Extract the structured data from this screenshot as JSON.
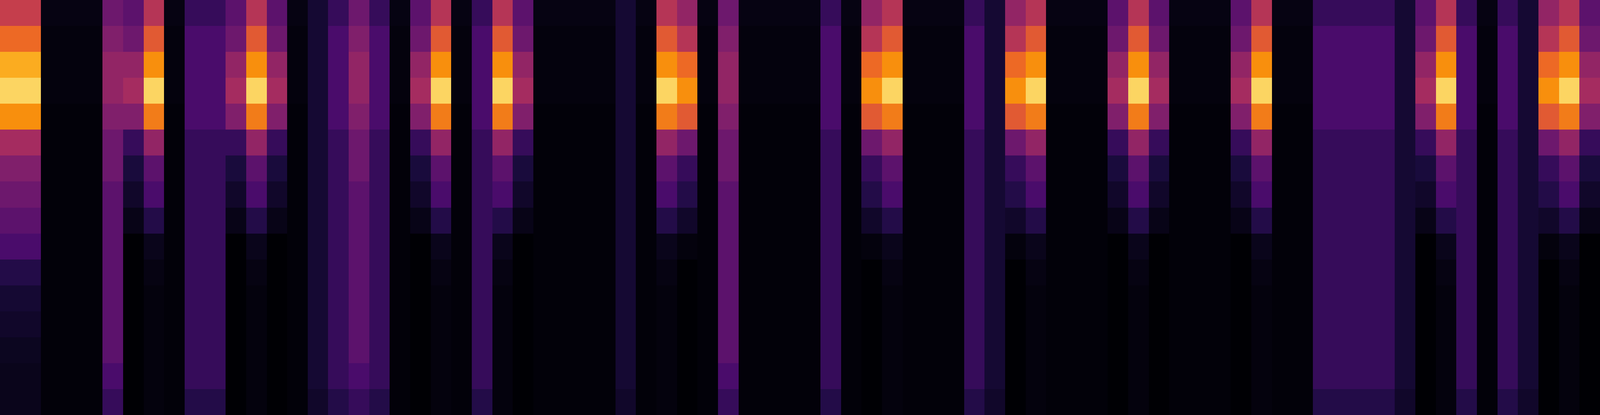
{
  "chart_data": {
    "type": "heatmap",
    "tick_labels": false,
    "zlim": [
      0,
      1
    ],
    "columns": [
      [
        0.6,
        0.75,
        0.9,
        0.95,
        0.85,
        0.5,
        0.4,
        0.35,
        0.3,
        0.25,
        0.15,
        0.1,
        0.08,
        0.06,
        0.05,
        0.05
      ],
      [
        0.6,
        0.75,
        0.9,
        0.95,
        0.85,
        0.5,
        0.4,
        0.35,
        0.3,
        0.25,
        0.15,
        0.1,
        0.08,
        0.06,
        0.05,
        0.05
      ],
      [
        0.03,
        0.02,
        0.02,
        0.02,
        0.01,
        0.01,
        0.01,
        0.01,
        0.01,
        0.01,
        0.01,
        0.01,
        0.01,
        0.01,
        0.01,
        0.01
      ],
      [
        0.03,
        0.02,
        0.02,
        0.02,
        0.01,
        0.01,
        0.01,
        0.01,
        0.01,
        0.01,
        0.01,
        0.01,
        0.01,
        0.01,
        0.01,
        0.01
      ],
      [
        0.03,
        0.02,
        0.02,
        0.02,
        0.01,
        0.01,
        0.01,
        0.01,
        0.01,
        0.01,
        0.01,
        0.01,
        0.01,
        0.01,
        0.01,
        0.01
      ],
      [
        0.35,
        0.4,
        0.45,
        0.45,
        0.4,
        0.35,
        0.35,
        0.3,
        0.3,
        0.3,
        0.3,
        0.3,
        0.3,
        0.3,
        0.25,
        0.2
      ],
      [
        0.3,
        0.35,
        0.45,
        0.5,
        0.4,
        0.2,
        0.12,
        0.08,
        0.04,
        0,
        0,
        0,
        0,
        0,
        0,
        0
      ],
      [
        0.55,
        0.7,
        0.85,
        0.95,
        0.8,
        0.45,
        0.3,
        0.25,
        0.15,
        0.05,
        0.03,
        0.02,
        0.02,
        0.02,
        0.02,
        0.02
      ],
      [
        0.03,
        0.02,
        0.02,
        0.02,
        0.01,
        0.01,
        0.01,
        0.01,
        0.01,
        0.01,
        0.01,
        0.01,
        0.01,
        0.01,
        0.01,
        0.01
      ],
      [
        0.2,
        0.25,
        0.25,
        0.25,
        0.25,
        0.2,
        0.2,
        0.2,
        0.2,
        0.2,
        0.2,
        0.2,
        0.2,
        0.2,
        0.2,
        0.15
      ],
      [
        0.2,
        0.25,
        0.25,
        0.25,
        0.25,
        0.2,
        0.2,
        0.2,
        0.2,
        0.2,
        0.2,
        0.2,
        0.2,
        0.2,
        0.2,
        0.15
      ],
      [
        0.3,
        0.35,
        0.45,
        0.5,
        0.4,
        0.2,
        0.12,
        0.08,
        0.04,
        0,
        0,
        0,
        0,
        0,
        0,
        0
      ],
      [
        0.55,
        0.7,
        0.85,
        0.95,
        0.8,
        0.45,
        0.3,
        0.25,
        0.15,
        0.05,
        0.03,
        0.02,
        0.02,
        0.02,
        0.02,
        0.02
      ],
      [
        0.3,
        0.35,
        0.45,
        0.5,
        0.4,
        0.2,
        0.12,
        0.08,
        0.04,
        0,
        0,
        0,
        0,
        0,
        0,
        0
      ],
      [
        0.03,
        0.02,
        0.02,
        0.02,
        0.01,
        0.01,
        0.01,
        0.01,
        0.01,
        0.01,
        0.01,
        0.01,
        0.01,
        0.01,
        0.01,
        0.01
      ],
      [
        0.1,
        0.1,
        0.1,
        0.1,
        0.1,
        0.1,
        0.1,
        0.1,
        0.1,
        0.1,
        0.1,
        0.1,
        0.1,
        0.1,
        0.1,
        0.08
      ],
      [
        0.2,
        0.25,
        0.25,
        0.25,
        0.25,
        0.2,
        0.2,
        0.2,
        0.2,
        0.2,
        0.2,
        0.2,
        0.2,
        0.2,
        0.2,
        0.15
      ],
      [
        0.35,
        0.4,
        0.45,
        0.45,
        0.4,
        0.35,
        0.35,
        0.3,
        0.3,
        0.3,
        0.3,
        0.3,
        0.3,
        0.3,
        0.25,
        0.2
      ],
      [
        0.2,
        0.25,
        0.25,
        0.25,
        0.25,
        0.2,
        0.2,
        0.2,
        0.2,
        0.2,
        0.2,
        0.2,
        0.2,
        0.2,
        0.2,
        0.15
      ],
      [
        0.03,
        0.02,
        0.02,
        0.02,
        0.01,
        0.01,
        0.01,
        0.01,
        0.01,
        0.01,
        0.01,
        0.01,
        0.01,
        0.01,
        0.01,
        0.01
      ],
      [
        0.3,
        0.35,
        0.45,
        0.5,
        0.4,
        0.2,
        0.12,
        0.08,
        0.04,
        0,
        0,
        0,
        0,
        0,
        0,
        0
      ],
      [
        0.55,
        0.7,
        0.85,
        0.95,
        0.8,
        0.45,
        0.3,
        0.25,
        0.15,
        0.05,
        0.03,
        0.02,
        0.02,
        0.02,
        0.02,
        0.02
      ],
      [
        0.03,
        0.02,
        0.02,
        0.02,
        0.01,
        0.01,
        0.01,
        0.01,
        0.01,
        0.01,
        0.01,
        0.01,
        0.01,
        0.01,
        0.01,
        0.01
      ],
      [
        0.2,
        0.25,
        0.25,
        0.25,
        0.25,
        0.2,
        0.2,
        0.2,
        0.2,
        0.2,
        0.2,
        0.2,
        0.2,
        0.2,
        0.2,
        0.15
      ],
      [
        0.55,
        0.7,
        0.85,
        0.95,
        0.8,
        0.45,
        0.3,
        0.25,
        0.15,
        0.05,
        0.03,
        0.02,
        0.02,
        0.02,
        0.02,
        0.02
      ],
      [
        0.3,
        0.35,
        0.45,
        0.5,
        0.4,
        0.2,
        0.12,
        0.08,
        0.04,
        0,
        0,
        0,
        0,
        0,
        0,
        0
      ],
      [
        0.03,
        0.02,
        0.02,
        0.02,
        0.01,
        0.01,
        0.01,
        0.01,
        0.01,
        0.01,
        0.01,
        0.01,
        0.01,
        0.01,
        0.01,
        0.01
      ],
      [
        0.03,
        0.02,
        0.02,
        0.02,
        0.01,
        0.01,
        0.01,
        0.01,
        0.01,
        0.01,
        0.01,
        0.01,
        0.01,
        0.01,
        0.01,
        0.01
      ],
      [
        0.03,
        0.02,
        0.02,
        0.02,
        0.01,
        0.01,
        0.01,
        0.01,
        0.01,
        0.01,
        0.01,
        0.01,
        0.01,
        0.01,
        0.01,
        0.01
      ],
      [
        0.03,
        0.02,
        0.02,
        0.02,
        0.01,
        0.01,
        0.01,
        0.01,
        0.01,
        0.01,
        0.01,
        0.01,
        0.01,
        0.01,
        0.01,
        0.01
      ],
      [
        0.1,
        0.1,
        0.1,
        0.1,
        0.1,
        0.1,
        0.1,
        0.1,
        0.1,
        0.1,
        0.1,
        0.1,
        0.1,
        0.1,
        0.1,
        0.08
      ],
      [
        0.03,
        0.02,
        0.02,
        0.02,
        0.01,
        0.01,
        0.01,
        0.01,
        0.01,
        0.01,
        0.01,
        0.01,
        0.01,
        0.01,
        0.01,
        0.01
      ],
      [
        0.55,
        0.7,
        0.85,
        0.95,
        0.8,
        0.45,
        0.3,
        0.25,
        0.15,
        0.05,
        0.03,
        0.02,
        0.02,
        0.02,
        0.02,
        0.02
      ],
      [
        0.45,
        0.55,
        0.75,
        0.85,
        0.7,
        0.35,
        0.2,
        0.15,
        0.08,
        0.02,
        0,
        0,
        0,
        0,
        0,
        0
      ],
      [
        0.03,
        0.02,
        0.02,
        0.02,
        0.01,
        0.01,
        0.01,
        0.01,
        0.01,
        0.01,
        0.01,
        0.01,
        0.01,
        0.01,
        0.01,
        0.01
      ],
      [
        0.35,
        0.4,
        0.45,
        0.45,
        0.4,
        0.35,
        0.35,
        0.3,
        0.3,
        0.3,
        0.3,
        0.3,
        0.3,
        0.3,
        0.25,
        0.2
      ],
      [
        0.03,
        0.02,
        0.02,
        0.02,
        0.01,
        0.01,
        0.01,
        0.01,
        0.01,
        0.01,
        0.01,
        0.01,
        0.01,
        0.01,
        0.01,
        0.01
      ],
      [
        0.03,
        0.02,
        0.02,
        0.02,
        0.01,
        0.01,
        0.01,
        0.01,
        0.01,
        0.01,
        0.01,
        0.01,
        0.01,
        0.01,
        0.01,
        0.01
      ],
      [
        0.03,
        0.02,
        0.02,
        0.02,
        0.01,
        0.01,
        0.01,
        0.01,
        0.01,
        0.01,
        0.01,
        0.01,
        0.01,
        0.01,
        0.01,
        0.01
      ],
      [
        0.03,
        0.02,
        0.02,
        0.02,
        0.01,
        0.01,
        0.01,
        0.01,
        0.01,
        0.01,
        0.01,
        0.01,
        0.01,
        0.01,
        0.01,
        0.01
      ],
      [
        0.2,
        0.25,
        0.25,
        0.25,
        0.25,
        0.2,
        0.2,
        0.2,
        0.2,
        0.2,
        0.2,
        0.2,
        0.2,
        0.2,
        0.2,
        0.15
      ],
      [
        0.03,
        0.02,
        0.02,
        0.02,
        0.01,
        0.01,
        0.01,
        0.01,
        0.01,
        0.01,
        0.01,
        0.01,
        0.01,
        0.01,
        0.01,
        0.01
      ],
      [
        0.45,
        0.55,
        0.75,
        0.85,
        0.7,
        0.35,
        0.2,
        0.15,
        0.08,
        0.02,
        0,
        0,
        0,
        0,
        0,
        0
      ],
      [
        0.55,
        0.7,
        0.85,
        0.95,
        0.8,
        0.45,
        0.3,
        0.25,
        0.15,
        0.05,
        0.03,
        0.02,
        0.02,
        0.02,
        0.02,
        0.02
      ],
      [
        0.03,
        0.02,
        0.02,
        0.02,
        0.01,
        0.01,
        0.01,
        0.01,
        0.01,
        0.01,
        0.01,
        0.01,
        0.01,
        0.01,
        0.01,
        0.01
      ],
      [
        0.03,
        0.02,
        0.02,
        0.02,
        0.01,
        0.01,
        0.01,
        0.01,
        0.01,
        0.01,
        0.01,
        0.01,
        0.01,
        0.01,
        0.01,
        0.01
      ],
      [
        0.03,
        0.02,
        0.02,
        0.02,
        0.01,
        0.01,
        0.01,
        0.01,
        0.01,
        0.01,
        0.01,
        0.01,
        0.01,
        0.01,
        0.01,
        0.01
      ],
      [
        0.2,
        0.25,
        0.25,
        0.25,
        0.25,
        0.2,
        0.2,
        0.2,
        0.2,
        0.2,
        0.2,
        0.2,
        0.2,
        0.2,
        0.2,
        0.15
      ],
      [
        0.1,
        0.1,
        0.1,
        0.1,
        0.1,
        0.1,
        0.1,
        0.1,
        0.1,
        0.1,
        0.1,
        0.1,
        0.1,
        0.1,
        0.1,
        0.08
      ],
      [
        0.45,
        0.55,
        0.75,
        0.85,
        0.7,
        0.35,
        0.2,
        0.15,
        0.08,
        0.02,
        0,
        0,
        0,
        0,
        0,
        0
      ],
      [
        0.55,
        0.7,
        0.85,
        0.95,
        0.8,
        0.45,
        0.3,
        0.25,
        0.15,
        0.05,
        0.03,
        0.02,
        0.02,
        0.02,
        0.02,
        0.02
      ],
      [
        0.03,
        0.02,
        0.02,
        0.02,
        0.01,
        0.01,
        0.01,
        0.01,
        0.01,
        0.01,
        0.01,
        0.01,
        0.01,
        0.01,
        0.01,
        0.01
      ],
      [
        0.03,
        0.02,
        0.02,
        0.02,
        0.01,
        0.01,
        0.01,
        0.01,
        0.01,
        0.01,
        0.01,
        0.01,
        0.01,
        0.01,
        0.01,
        0.01
      ],
      [
        0.03,
        0.02,
        0.02,
        0.02,
        0.01,
        0.01,
        0.01,
        0.01,
        0.01,
        0.01,
        0.01,
        0.01,
        0.01,
        0.01,
        0.01,
        0.01
      ],
      [
        0.3,
        0.35,
        0.45,
        0.5,
        0.4,
        0.2,
        0.12,
        0.08,
        0.04,
        0,
        0,
        0,
        0,
        0,
        0,
        0
      ],
      [
        0.55,
        0.7,
        0.85,
        0.95,
        0.8,
        0.45,
        0.3,
        0.25,
        0.15,
        0.05,
        0.03,
        0.02,
        0.02,
        0.02,
        0.02,
        0.02
      ],
      [
        0.3,
        0.35,
        0.45,
        0.5,
        0.4,
        0.2,
        0.12,
        0.08,
        0.04,
        0,
        0,
        0,
        0,
        0,
        0,
        0
      ],
      [
        0.03,
        0.02,
        0.02,
        0.02,
        0.01,
        0.01,
        0.01,
        0.01,
        0.01,
        0.01,
        0.01,
        0.01,
        0.01,
        0.01,
        0.01,
        0.01
      ],
      [
        0.03,
        0.02,
        0.02,
        0.02,
        0.01,
        0.01,
        0.01,
        0.01,
        0.01,
        0.01,
        0.01,
        0.01,
        0.01,
        0.01,
        0.01,
        0.01
      ],
      [
        0.03,
        0.02,
        0.02,
        0.02,
        0.01,
        0.01,
        0.01,
        0.01,
        0.01,
        0.01,
        0.01,
        0.01,
        0.01,
        0.01,
        0.01,
        0.01
      ],
      [
        0.3,
        0.35,
        0.45,
        0.5,
        0.4,
        0.2,
        0.12,
        0.08,
        0.04,
        0,
        0,
        0,
        0,
        0,
        0,
        0
      ],
      [
        0.55,
        0.7,
        0.85,
        0.95,
        0.8,
        0.45,
        0.3,
        0.25,
        0.15,
        0.05,
        0.03,
        0.02,
        0.02,
        0.02,
        0.02,
        0.02
      ],
      [
        0.03,
        0.02,
        0.02,
        0.02,
        0.01,
        0.01,
        0.01,
        0.01,
        0.01,
        0.01,
        0.01,
        0.01,
        0.01,
        0.01,
        0.01,
        0.01
      ],
      [
        0.03,
        0.02,
        0.02,
        0.02,
        0.01,
        0.01,
        0.01,
        0.01,
        0.01,
        0.01,
        0.01,
        0.01,
        0.01,
        0.01,
        0.01,
        0.01
      ],
      [
        0.2,
        0.25,
        0.25,
        0.25,
        0.25,
        0.2,
        0.2,
        0.2,
        0.2,
        0.2,
        0.2,
        0.2,
        0.2,
        0.2,
        0.2,
        0.15
      ],
      [
        0.2,
        0.25,
        0.25,
        0.25,
        0.25,
        0.2,
        0.2,
        0.2,
        0.2,
        0.2,
        0.2,
        0.2,
        0.2,
        0.2,
        0.2,
        0.15
      ],
      [
        0.2,
        0.25,
        0.25,
        0.25,
        0.25,
        0.2,
        0.2,
        0.2,
        0.2,
        0.2,
        0.2,
        0.2,
        0.2,
        0.2,
        0.2,
        0.15
      ],
      [
        0.2,
        0.25,
        0.25,
        0.25,
        0.25,
        0.2,
        0.2,
        0.2,
        0.2,
        0.2,
        0.2,
        0.2,
        0.2,
        0.2,
        0.2,
        0.15
      ],
      [
        0.1,
        0.1,
        0.1,
        0.1,
        0.1,
        0.1,
        0.1,
        0.1,
        0.1,
        0.1,
        0.1,
        0.1,
        0.1,
        0.1,
        0.1,
        0.08
      ],
      [
        0.3,
        0.35,
        0.45,
        0.5,
        0.4,
        0.2,
        0.12,
        0.08,
        0.04,
        0,
        0,
        0,
        0,
        0,
        0,
        0
      ],
      [
        0.55,
        0.7,
        0.85,
        0.95,
        0.8,
        0.45,
        0.3,
        0.25,
        0.15,
        0.05,
        0.03,
        0.02,
        0.02,
        0.02,
        0.02,
        0.02
      ],
      [
        0.2,
        0.25,
        0.25,
        0.25,
        0.25,
        0.2,
        0.2,
        0.2,
        0.2,
        0.2,
        0.2,
        0.2,
        0.2,
        0.2,
        0.2,
        0.15
      ],
      [
        0.03,
        0.02,
        0.02,
        0.02,
        0.01,
        0.01,
        0.01,
        0.01,
        0.01,
        0.01,
        0.01,
        0.01,
        0.01,
        0.01,
        0.01,
        0.01
      ],
      [
        0.2,
        0.25,
        0.25,
        0.25,
        0.25,
        0.2,
        0.2,
        0.2,
        0.2,
        0.2,
        0.2,
        0.2,
        0.2,
        0.2,
        0.2,
        0.15
      ],
      [
        0.1,
        0.1,
        0.1,
        0.1,
        0.1,
        0.1,
        0.1,
        0.1,
        0.1,
        0.1,
        0.1,
        0.1,
        0.1,
        0.1,
        0.1,
        0.08
      ],
      [
        0.45,
        0.55,
        0.75,
        0.85,
        0.7,
        0.35,
        0.2,
        0.15,
        0.08,
        0.02,
        0,
        0,
        0,
        0,
        0,
        0
      ],
      [
        0.55,
        0.7,
        0.85,
        0.95,
        0.8,
        0.45,
        0.3,
        0.25,
        0.15,
        0.05,
        0.03,
        0.02,
        0.02,
        0.02,
        0.02,
        0.02
      ],
      [
        0.3,
        0.35,
        0.45,
        0.5,
        0.4,
        0.2,
        0.12,
        0.08,
        0.04,
        0,
        0,
        0,
        0,
        0,
        0,
        0
      ]
    ]
  }
}
